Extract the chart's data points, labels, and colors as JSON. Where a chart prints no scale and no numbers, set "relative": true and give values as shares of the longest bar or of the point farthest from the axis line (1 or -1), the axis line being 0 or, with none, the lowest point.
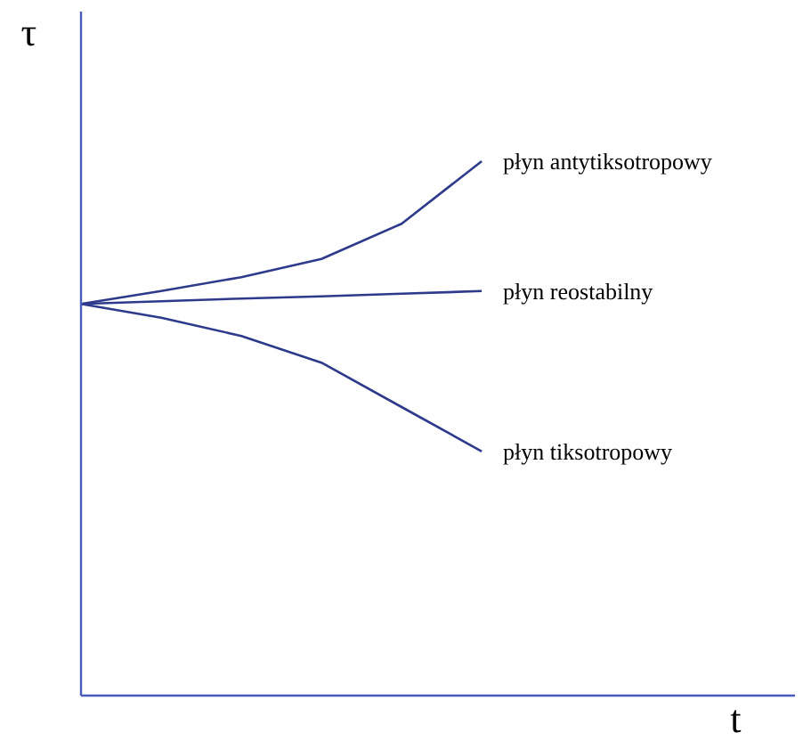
{
  "chart_data": {
    "type": "line",
    "relative": true,
    "xlabel": "t",
    "ylabel": "τ",
    "categories": [
      null,
      null,
      null,
      null,
      null,
      null,
      null,
      null,
      null
    ],
    "series": [
      {
        "name": "płyn antytiksotropowy",
        "color": "#2e3a8c",
        "values": [
          0.733,
          0.757,
          0.783,
          0.817,
          0.883,
          1,
          null,
          null,
          null
        ]
      },
      {
        "name": "płyn reostabilny",
        "color": "#2e3a8c",
        "values": [
          0.733,
          0.738,
          0.743,
          0.747,
          0.752,
          0.757,
          null,
          null,
          null
        ]
      },
      {
        "name": "płyn tiksotropowy",
        "color": "#2e3a8c",
        "values": [
          0.733,
          0.707,
          0.673,
          0.623,
          0.54,
          0.457,
          null,
          null,
          null
        ]
      }
    ],
    "marker": "none",
    "line_style": "solid"
  }
}
